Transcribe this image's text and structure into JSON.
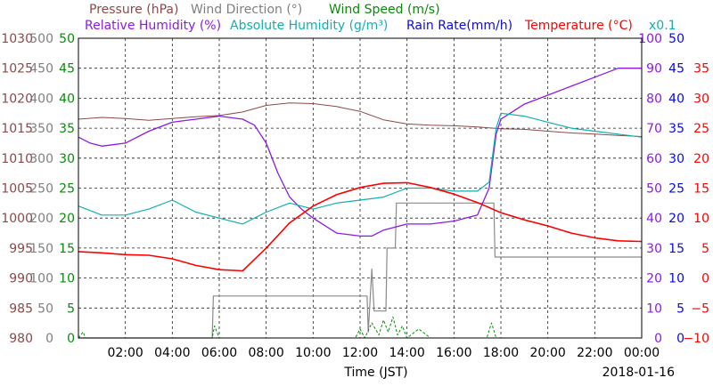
{
  "chart_data": {
    "type": "line",
    "legend_row1": [
      {
        "key": "pressure",
        "label": "Pressure (hPa)",
        "color": "#8b4a4a"
      },
      {
        "key": "wind_direction",
        "label": "Wind Direction (°)",
        "color": "#808080"
      },
      {
        "key": "wind_speed",
        "label": "Wind Speed (m/s)",
        "color": "#0a8a0a"
      }
    ],
    "legend_row2": [
      {
        "key": "relative_humidity",
        "label": "Relative Humidity (%)",
        "color": "#8b1ae8"
      },
      {
        "key": "absolute_humidity",
        "label": "Absolute Humidity (g/m³)",
        "color": "#10b0b0"
      },
      {
        "key": "rain_rate",
        "label": "Rain Rate(mm/h)",
        "color": "#0a0ae8"
      },
      {
        "key": "temperature",
        "label": "Temperature (°C)",
        "color": "#ff0000"
      }
    ],
    "abs_humidity_multiplier": "x0.1",
    "xlabel": "Time (JST)",
    "date": "2018-01-16",
    "x_ticks": [
      "02:00",
      "04:00",
      "06:00",
      "08:00",
      "10:00",
      "12:00",
      "14:00",
      "16:00",
      "18:00",
      "20:00",
      "22:00",
      "00:00"
    ],
    "xlim_hours": [
      0,
      24
    ],
    "axes": {
      "pressure": {
        "min": 980,
        "max": 1030,
        "ticks": [
          "980",
          "985",
          "990",
          "995",
          "1000",
          "1005",
          "1010",
          "1015",
          "1020",
          "1025",
          "1030"
        ],
        "color": "#8b4a4a"
      },
      "wind_direction": {
        "min": 0,
        "max": 500,
        "ticks": [
          "0",
          "50",
          "100",
          "150",
          "200",
          "250",
          "300",
          "350",
          "400",
          "450",
          "500"
        ],
        "color": "#808080"
      },
      "wind_speed": {
        "min": 0,
        "max": 50,
        "ticks": [
          "0",
          "5",
          "10",
          "15",
          "20",
          "25",
          "30",
          "35",
          "40",
          "45",
          "50"
        ],
        "color": "#0a8a0a"
      },
      "relative_humidity": {
        "min": 0,
        "max": 100,
        "ticks": [
          "0",
          "10",
          "20",
          "30",
          "40",
          "50",
          "60",
          "70",
          "80",
          "90",
          "100"
        ],
        "color": "#8b1ae8"
      },
      "rain_rate": {
        "min": 0,
        "max": 50,
        "ticks": [
          "0",
          "5",
          "10",
          "15",
          "20",
          "25",
          "30",
          "35",
          "40",
          "45",
          "50"
        ],
        "color": "#0a0ae8"
      },
      "temperature": {
        "min": -10,
        "max": 40,
        "ticks": [
          "−10",
          "−5",
          "0",
          "5",
          "10",
          "15",
          "20",
          "25",
          "30",
          "35"
        ],
        "color": "#ff0000"
      }
    },
    "series": [
      {
        "name": "Pressure (hPa)",
        "key": "pressure",
        "axis": "pressure",
        "x": [
          0,
          1,
          2,
          3,
          4,
          5,
          6,
          7,
          8,
          9,
          10,
          11,
          12,
          13,
          14,
          15,
          16,
          17,
          18,
          19,
          20,
          21,
          22,
          23,
          24
        ],
        "y": [
          1016.5,
          1016.8,
          1016.6,
          1016.3,
          1016.6,
          1016.9,
          1017.1,
          1017.7,
          1018.8,
          1019.2,
          1019.1,
          1018.6,
          1017.8,
          1016.4,
          1015.7,
          1015.5,
          1015.4,
          1015.2,
          1014.9,
          1014.8,
          1014.5,
          1014.2,
          1014.0,
          1013.8,
          1013.6
        ]
      },
      {
        "name": "Wind Direction (°)",
        "key": "wind_direction",
        "axis": "wind_direction",
        "x": [
          0,
          5.7,
          5.75,
          12.3,
          12.35,
          12.5,
          12.6,
          12.65,
          13.1,
          13.15,
          13.5,
          13.55,
          14,
          17.7,
          17.75,
          24
        ],
        "y": [
          0,
          0,
          70,
          70,
          10,
          115,
          45,
          45,
          45,
          150,
          150,
          225,
          225,
          225,
          135,
          135
        ]
      },
      {
        "name": "Wind Speed (m/s)",
        "key": "wind_speed",
        "axis": "wind_speed",
        "x": [
          0,
          0.2,
          0.3,
          0.5,
          5.7,
          5.8,
          6.0,
          6.3,
          11.8,
          12.0,
          12.2,
          12.5,
          12.8,
          13.0,
          13.2,
          13.4,
          13.6,
          13.8,
          14.0,
          14.5,
          15.0,
          17.4,
          17.6,
          17.8,
          18.0,
          24
        ],
        "y": [
          0,
          1,
          0,
          0,
          0,
          2,
          0,
          0,
          0,
          1.5,
          0,
          2.5,
          0.5,
          3,
          1,
          3.5,
          0.5,
          2,
          0,
          1.5,
          0,
          0,
          2.5,
          0,
          0,
          0
        ]
      },
      {
        "name": "Relative Humidity (%)",
        "key": "relative_humidity",
        "axis": "relative_humidity",
        "x": [
          0,
          0.5,
          1,
          2,
          3,
          4,
          5,
          6,
          7,
          7.5,
          8,
          8.5,
          9,
          9.5,
          10,
          11,
          12,
          12.5,
          13,
          14,
          15,
          16,
          17,
          17.5,
          17.8,
          18,
          19,
          20,
          21,
          22,
          23,
          24
        ],
        "y": [
          67,
          65,
          64,
          65,
          69,
          72,
          73,
          74,
          73,
          71,
          65,
          55,
          47,
          43,
          40,
          35,
          34,
          34,
          36,
          38,
          38,
          39,
          41,
          50,
          68,
          73,
          78,
          81,
          84,
          87,
          90,
          90
        ]
      },
      {
        "name": "Absolute Humidity (g/m³)",
        "key": "absolute_humidity",
        "axis": "relative_humidity",
        "x": [
          0,
          1,
          2,
          3,
          4,
          5,
          6,
          7,
          8,
          9,
          10,
          11,
          12,
          13,
          14,
          15,
          16,
          17,
          17.5,
          17.8,
          18,
          19,
          20,
          21,
          22,
          23,
          24
        ],
        "y": [
          44,
          41,
          41,
          43,
          46,
          42,
          40,
          38,
          42,
          45,
          43,
          45,
          46,
          47,
          50,
          50,
          49,
          49,
          52,
          70,
          75,
          74,
          72,
          70,
          69,
          68,
          67
        ]
      },
      {
        "name": "Rain Rate(mm/h)",
        "key": "rain_rate",
        "axis": "rain_rate",
        "x": [
          0,
          24
        ],
        "y": [
          0,
          0
        ]
      },
      {
        "name": "Temperature (°C)",
        "key": "temperature",
        "axis": "temperature",
        "x": [
          0,
          1,
          2,
          3,
          4,
          5,
          6,
          7,
          8,
          9,
          10,
          11,
          12,
          13,
          14,
          15,
          16,
          17,
          18,
          19,
          20,
          21,
          22,
          23,
          24
        ],
        "y": [
          4.4,
          4.2,
          3.9,
          3.8,
          3.2,
          2.1,
          1.4,
          1.2,
          5,
          9.2,
          12,
          13.9,
          15.1,
          15.8,
          15.9,
          15.1,
          14,
          12.6,
          10.9,
          9.7,
          8.7,
          7.5,
          6.7,
          6.2,
          6.1
        ]
      }
    ]
  }
}
